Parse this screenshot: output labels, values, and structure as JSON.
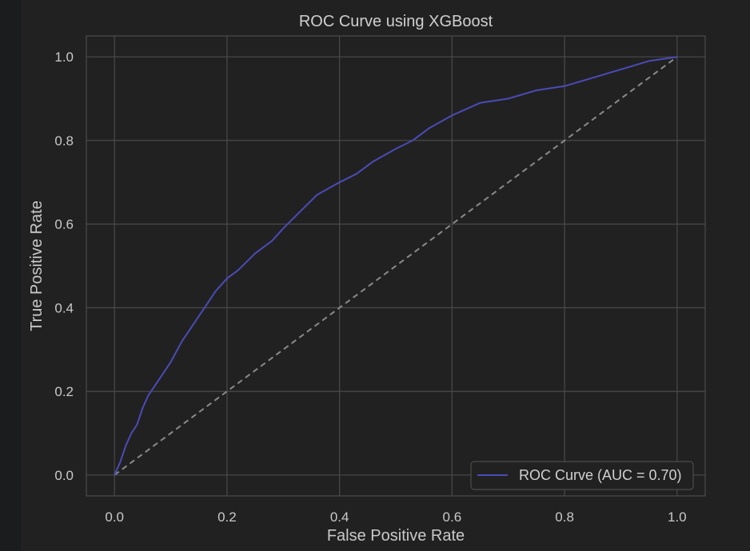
{
  "chart_data": {
    "type": "line",
    "title": "ROC Curve using XGBoost",
    "xlabel": "False Positive Rate",
    "ylabel": "True Positive Rate",
    "xlim": [
      -0.05,
      1.05
    ],
    "ylim": [
      -0.05,
      1.05
    ],
    "x_ticks": [
      0.0,
      0.2,
      0.4,
      0.6,
      0.8,
      1.0
    ],
    "y_ticks": [
      0.0,
      0.2,
      0.4,
      0.6,
      0.8,
      1.0
    ],
    "x_tick_labels": [
      "0.0",
      "0.2",
      "0.4",
      "0.6",
      "0.8",
      "1.0"
    ],
    "y_tick_labels": [
      "0.0",
      "0.2",
      "0.4",
      "0.6",
      "0.8",
      "1.0"
    ],
    "grid": true,
    "legend_position": "lower-right",
    "series": [
      {
        "name": "ROC Curve (AUC = 0.70)",
        "color": "#4b4bb8",
        "style": "solid",
        "x": [
          0.0,
          0.01,
          0.02,
          0.03,
          0.04,
          0.05,
          0.06,
          0.07,
          0.08,
          0.09,
          0.1,
          0.12,
          0.14,
          0.16,
          0.18,
          0.2,
          0.22,
          0.25,
          0.28,
          0.3,
          0.33,
          0.36,
          0.4,
          0.43,
          0.46,
          0.5,
          0.53,
          0.56,
          0.6,
          0.65,
          0.7,
          0.75,
          0.8,
          0.85,
          0.9,
          0.95,
          1.0
        ],
        "y": [
          0.0,
          0.03,
          0.07,
          0.1,
          0.12,
          0.16,
          0.19,
          0.21,
          0.23,
          0.25,
          0.27,
          0.32,
          0.36,
          0.4,
          0.44,
          0.47,
          0.49,
          0.53,
          0.56,
          0.59,
          0.63,
          0.67,
          0.7,
          0.72,
          0.75,
          0.78,
          0.8,
          0.83,
          0.86,
          0.89,
          0.9,
          0.92,
          0.93,
          0.95,
          0.97,
          0.99,
          1.0
        ]
      },
      {
        "name": "",
        "color": "#8a8a8a",
        "style": "dashed",
        "x": [
          0.0,
          1.0
        ],
        "y": [
          0.0,
          1.0
        ]
      }
    ]
  },
  "colors": {
    "figure_background": "#212121",
    "plot_background": "#212121",
    "grid": "#4a4a4a",
    "spine": "#4a4a4a",
    "text": "#c9c9c9"
  }
}
